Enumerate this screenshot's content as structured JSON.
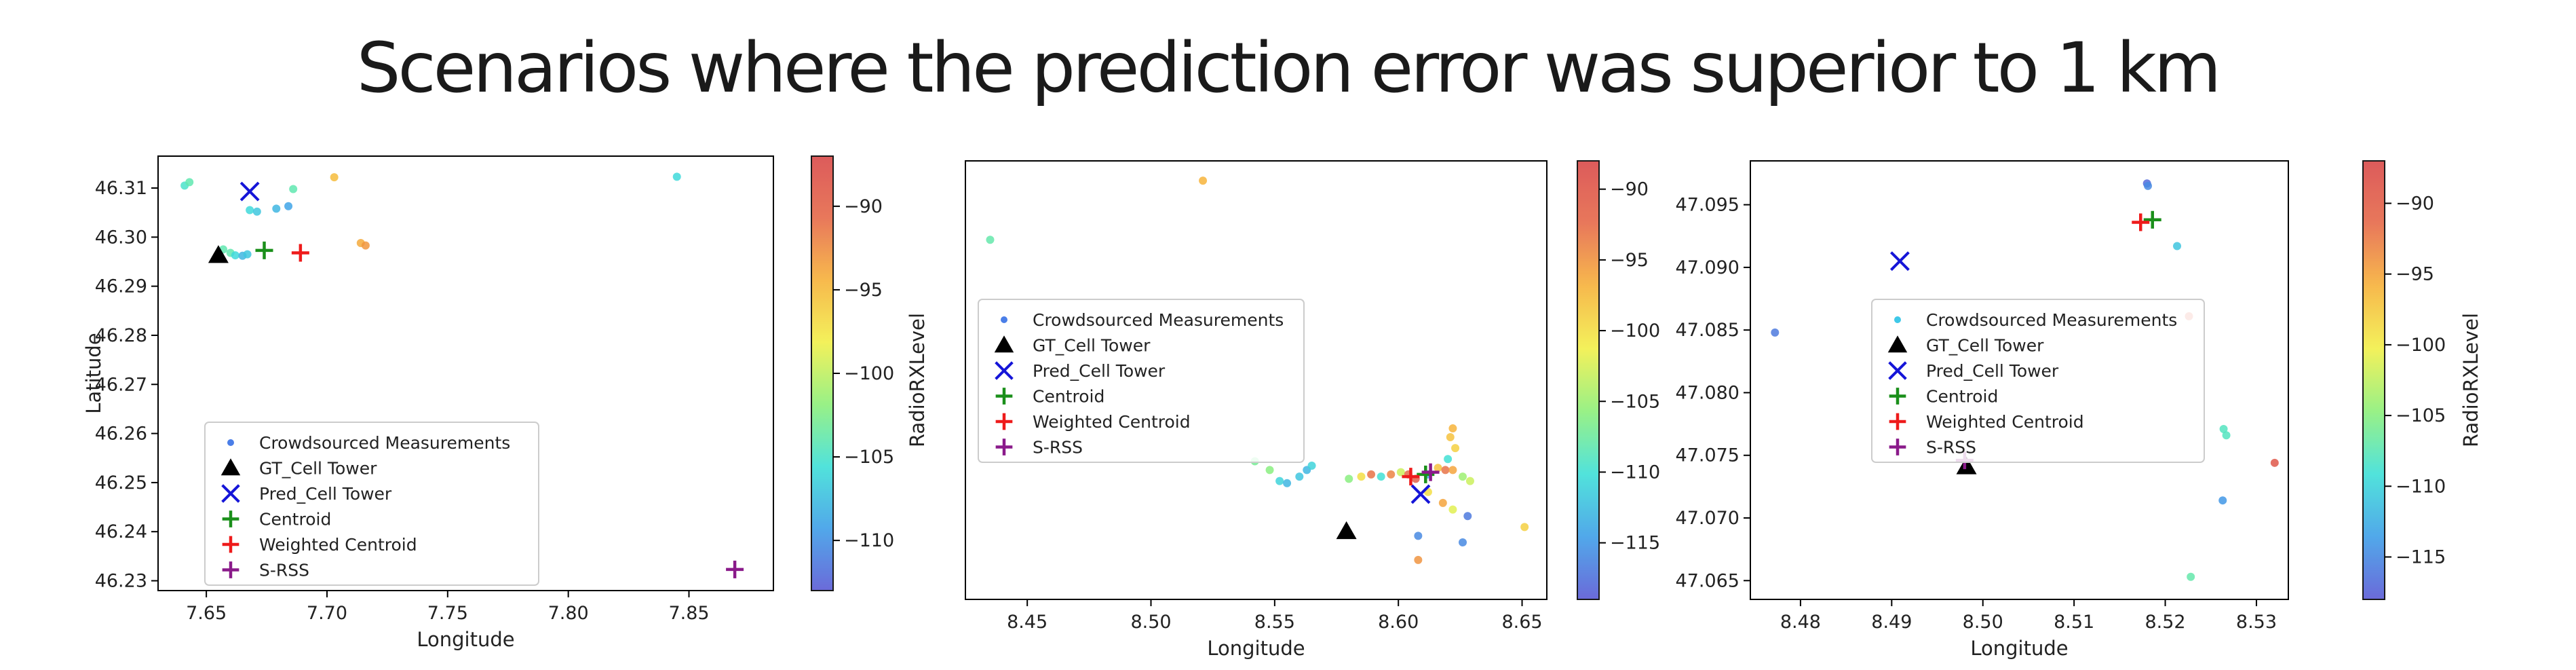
{
  "title": "Scenarios where the prediction error was  superior to 1 km",
  "colorbar_colors": [
    "#5b5bd6",
    "#3f9fe8",
    "#3fe0d8",
    "#8ef07a",
    "#f2f04a",
    "#f7b23a",
    "#e66a4a",
    "#d94a4a"
  ],
  "marker_colors": {
    "gt": "#000000",
    "pred": "#1515d8",
    "centroid": "#1a8f1a",
    "weighted": "#ee1b1b",
    "srss": "#8a1a8a"
  },
  "chart_data": [
    {
      "type": "scatter",
      "xlabel": "Longitude",
      "ylabel": "Latitude",
      "xlim": [
        7.63,
        7.885
      ],
      "ylim": [
        46.228,
        46.3165
      ],
      "xticks": [
        "7.65",
        "7.70",
        "7.75",
        "7.80",
        "7.85"
      ],
      "xtick_values": [
        7.65,
        7.7,
        7.75,
        7.8,
        7.85
      ],
      "yticks": [
        "46.31",
        "46.30",
        "46.29",
        "46.28",
        "46.27",
        "46.26",
        "46.25",
        "46.24",
        "46.23"
      ],
      "ytick_values": [
        46.31,
        46.3,
        46.29,
        46.28,
        46.27,
        46.26,
        46.25,
        46.24,
        46.23
      ],
      "colorbar_label": "",
      "colorbar_range": [
        -113,
        -87
      ],
      "colorbar_ticks": [
        "−90",
        "−95",
        "−100",
        "−105",
        "−110"
      ],
      "colorbar_tick_values": [
        -90,
        -95,
        -100,
        -105,
        -110
      ],
      "legend_position": "lower-left",
      "legend": [
        "Crowdsourced Measurements",
        "GT_Cell Tower",
        "Pred_Cell Tower",
        "Centroid",
        "Weighted Centroid",
        "S-RSS"
      ],
      "measurements": [
        {
          "x": 7.641,
          "y": 46.3105,
          "v": -105
        },
        {
          "x": 7.643,
          "y": 46.3112,
          "v": -104
        },
        {
          "x": 7.668,
          "y": 46.3055,
          "v": -106
        },
        {
          "x": 7.671,
          "y": 46.3052,
          "v": -107
        },
        {
          "x": 7.679,
          "y": 46.3058,
          "v": -108
        },
        {
          "x": 7.684,
          "y": 46.3063,
          "v": -109
        },
        {
          "x": 7.686,
          "y": 46.3098,
          "v": -104
        },
        {
          "x": 7.703,
          "y": 46.3122,
          "v": -95
        },
        {
          "x": 7.845,
          "y": 46.3123,
          "v": -106
        },
        {
          "x": 7.657,
          "y": 46.2975,
          "v": -104
        },
        {
          "x": 7.66,
          "y": 46.2968,
          "v": -104
        },
        {
          "x": 7.662,
          "y": 46.2963,
          "v": -106
        },
        {
          "x": 7.665,
          "y": 46.2962,
          "v": -108
        },
        {
          "x": 7.667,
          "y": 46.2965,
          "v": -107
        },
        {
          "x": 7.714,
          "y": 46.2988,
          "v": -94
        },
        {
          "x": 7.716,
          "y": 46.2983,
          "v": -93
        }
      ],
      "gt": {
        "x": 7.655,
        "y": 46.2963
      },
      "pred": {
        "x": 7.668,
        "y": 46.3093
      },
      "centroid": {
        "x": 7.674,
        "y": 46.2973
      },
      "weighted": {
        "x": 7.689,
        "y": 46.2968
      },
      "srss": {
        "x": 7.869,
        "y": 46.2323
      }
    },
    {
      "type": "scatter",
      "xlabel": "Longitude",
      "ylabel": "RadioRXLevel",
      "xlim": [
        8.425,
        8.66
      ],
      "ylim": [
        0,
        100
      ],
      "xticks": [
        "8.45",
        "8.50",
        "8.55",
        "8.60",
        "8.65"
      ],
      "xtick_values": [
        8.45,
        8.5,
        8.55,
        8.6,
        8.65
      ],
      "yticks": [],
      "ytick_values": [],
      "colorbar_label": "",
      "colorbar_range": [
        -119,
        -88
      ],
      "colorbar_ticks": [
        "−90",
        "−95",
        "−100",
        "−105",
        "−110",
        "−115"
      ],
      "colorbar_tick_values": [
        -90,
        -95,
        -100,
        -105,
        -110,
        -115
      ],
      "legend_position": "center-left",
      "legend": [
        "Crowdsourced Measurements",
        "GT_Cell Tower",
        "Pred_Cell Tower",
        "Centroid",
        "Weighted Centroid",
        "S-RSS"
      ],
      "measurements": [
        {
          "x": 8.521,
          "y": 95.5,
          "v": -97
        },
        {
          "x": 8.435,
          "y": 82,
          "v": -108
        },
        {
          "x": 8.542,
          "y": 31.5,
          "v": -107
        },
        {
          "x": 8.548,
          "y": 29.5,
          "v": -106
        },
        {
          "x": 8.552,
          "y": 27,
          "v": -111
        },
        {
          "x": 8.555,
          "y": 26.5,
          "v": -113
        },
        {
          "x": 8.56,
          "y": 28,
          "v": -112
        },
        {
          "x": 8.563,
          "y": 29.5,
          "v": -113
        },
        {
          "x": 8.565,
          "y": 30.5,
          "v": -111
        },
        {
          "x": 8.58,
          "y": 27.5,
          "v": -106
        },
        {
          "x": 8.585,
          "y": 28,
          "v": -100
        },
        {
          "x": 8.589,
          "y": 28.5,
          "v": -93
        },
        {
          "x": 8.593,
          "y": 28,
          "v": -110
        },
        {
          "x": 8.597,
          "y": 28.5,
          "v": -94
        },
        {
          "x": 8.601,
          "y": 29,
          "v": -103
        },
        {
          "x": 8.604,
          "y": 28.5,
          "v": -92
        },
        {
          "x": 8.607,
          "y": 27.5,
          "v": -91
        },
        {
          "x": 8.612,
          "y": 28.5,
          "v": -113
        },
        {
          "x": 8.616,
          "y": 30,
          "v": -98
        },
        {
          "x": 8.619,
          "y": 29.5,
          "v": -93
        },
        {
          "x": 8.622,
          "y": 29.5,
          "v": -96
        },
        {
          "x": 8.626,
          "y": 28,
          "v": -105
        },
        {
          "x": 8.629,
          "y": 27,
          "v": -103
        },
        {
          "x": 8.612,
          "y": 24.5,
          "v": -100
        },
        {
          "x": 8.618,
          "y": 22,
          "v": -96
        },
        {
          "x": 8.622,
          "y": 20.5,
          "v": -102
        },
        {
          "x": 8.628,
          "y": 19,
          "v": -117
        },
        {
          "x": 8.62,
          "y": 32,
          "v": -110
        },
        {
          "x": 8.623,
          "y": 34.5,
          "v": -99
        },
        {
          "x": 8.621,
          "y": 37,
          "v": -98
        },
        {
          "x": 8.622,
          "y": 39,
          "v": -97
        },
        {
          "x": 8.608,
          "y": 14.5,
          "v": -116
        },
        {
          "x": 8.608,
          "y": 9,
          "v": -95
        },
        {
          "x": 8.651,
          "y": 16.5,
          "v": -99
        },
        {
          "x": 8.626,
          "y": 13,
          "v": -116
        }
      ],
      "gt": {
        "x": 8.579,
        "y": 15.5
      },
      "pred": {
        "x": 8.609,
        "y": 24
      },
      "centroid": {
        "x": 8.611,
        "y": 28.5
      },
      "weighted": {
        "x": 8.605,
        "y": 28
      },
      "srss": {
        "x": 8.613,
        "y": 29
      }
    },
    {
      "type": "scatter",
      "xlabel": "Longitude",
      "ylabel": "",
      "xlim": [
        8.4745,
        8.5335
      ],
      "ylim": [
        47.0635,
        47.0985
      ],
      "xticks": [
        "8.48",
        "8.49",
        "8.50",
        "8.51",
        "8.52",
        "8.53"
      ],
      "xtick_values": [
        8.48,
        8.49,
        8.5,
        8.51,
        8.52,
        8.53
      ],
      "yticks": [
        "47.095",
        "47.090",
        "47.085",
        "47.080",
        "47.075",
        "47.070",
        "47.065"
      ],
      "ytick_values": [
        47.095,
        47.09,
        47.085,
        47.08,
        47.075,
        47.07,
        47.065
      ],
      "colorbar_label": "RadioRXLevel",
      "colorbar_range": [
        -118,
        -87
      ],
      "colorbar_ticks": [
        "−90",
        "−95",
        "−100",
        "−105",
        "−110",
        "−115"
      ],
      "colorbar_tick_values": [
        -90,
        -95,
        -100,
        -105,
        -110,
        -115
      ],
      "legend_position": "center",
      "legend": [
        "Crowdsourced Measurements",
        "GT_Cell Tower",
        "Pred_Cell Tower",
        "Centroid",
        "Weighted Centroid",
        "S-RSS"
      ],
      "measurements": [
        {
          "x": 8.518,
          "y": 47.0967,
          "v": -117
        },
        {
          "x": 8.5181,
          "y": 47.0965,
          "v": -115
        },
        {
          "x": 8.5213,
          "y": 47.0917,
          "v": -111
        },
        {
          "x": 8.5226,
          "y": 47.0861,
          "v": -90
        },
        {
          "x": 8.4772,
          "y": 47.0848,
          "v": -116
        },
        {
          "x": 8.5264,
          "y": 47.0771,
          "v": -108
        },
        {
          "x": 8.5267,
          "y": 47.0766,
          "v": -108
        },
        {
          "x": 8.532,
          "y": 47.0744,
          "v": -89
        },
        {
          "x": 8.5263,
          "y": 47.0714,
          "v": -114
        },
        {
          "x": 8.5228,
          "y": 47.0653,
          "v": -107
        }
      ],
      "gt": {
        "x": 8.4982,
        "y": 47.0741
      },
      "pred": {
        "x": 8.4909,
        "y": 47.0905
      },
      "centroid": {
        "x": 8.5186,
        "y": 47.0938
      },
      "weighted": {
        "x": 8.5173,
        "y": 47.0936
      },
      "srss": {
        "x": 8.498,
        "y": 47.0746
      }
    }
  ]
}
